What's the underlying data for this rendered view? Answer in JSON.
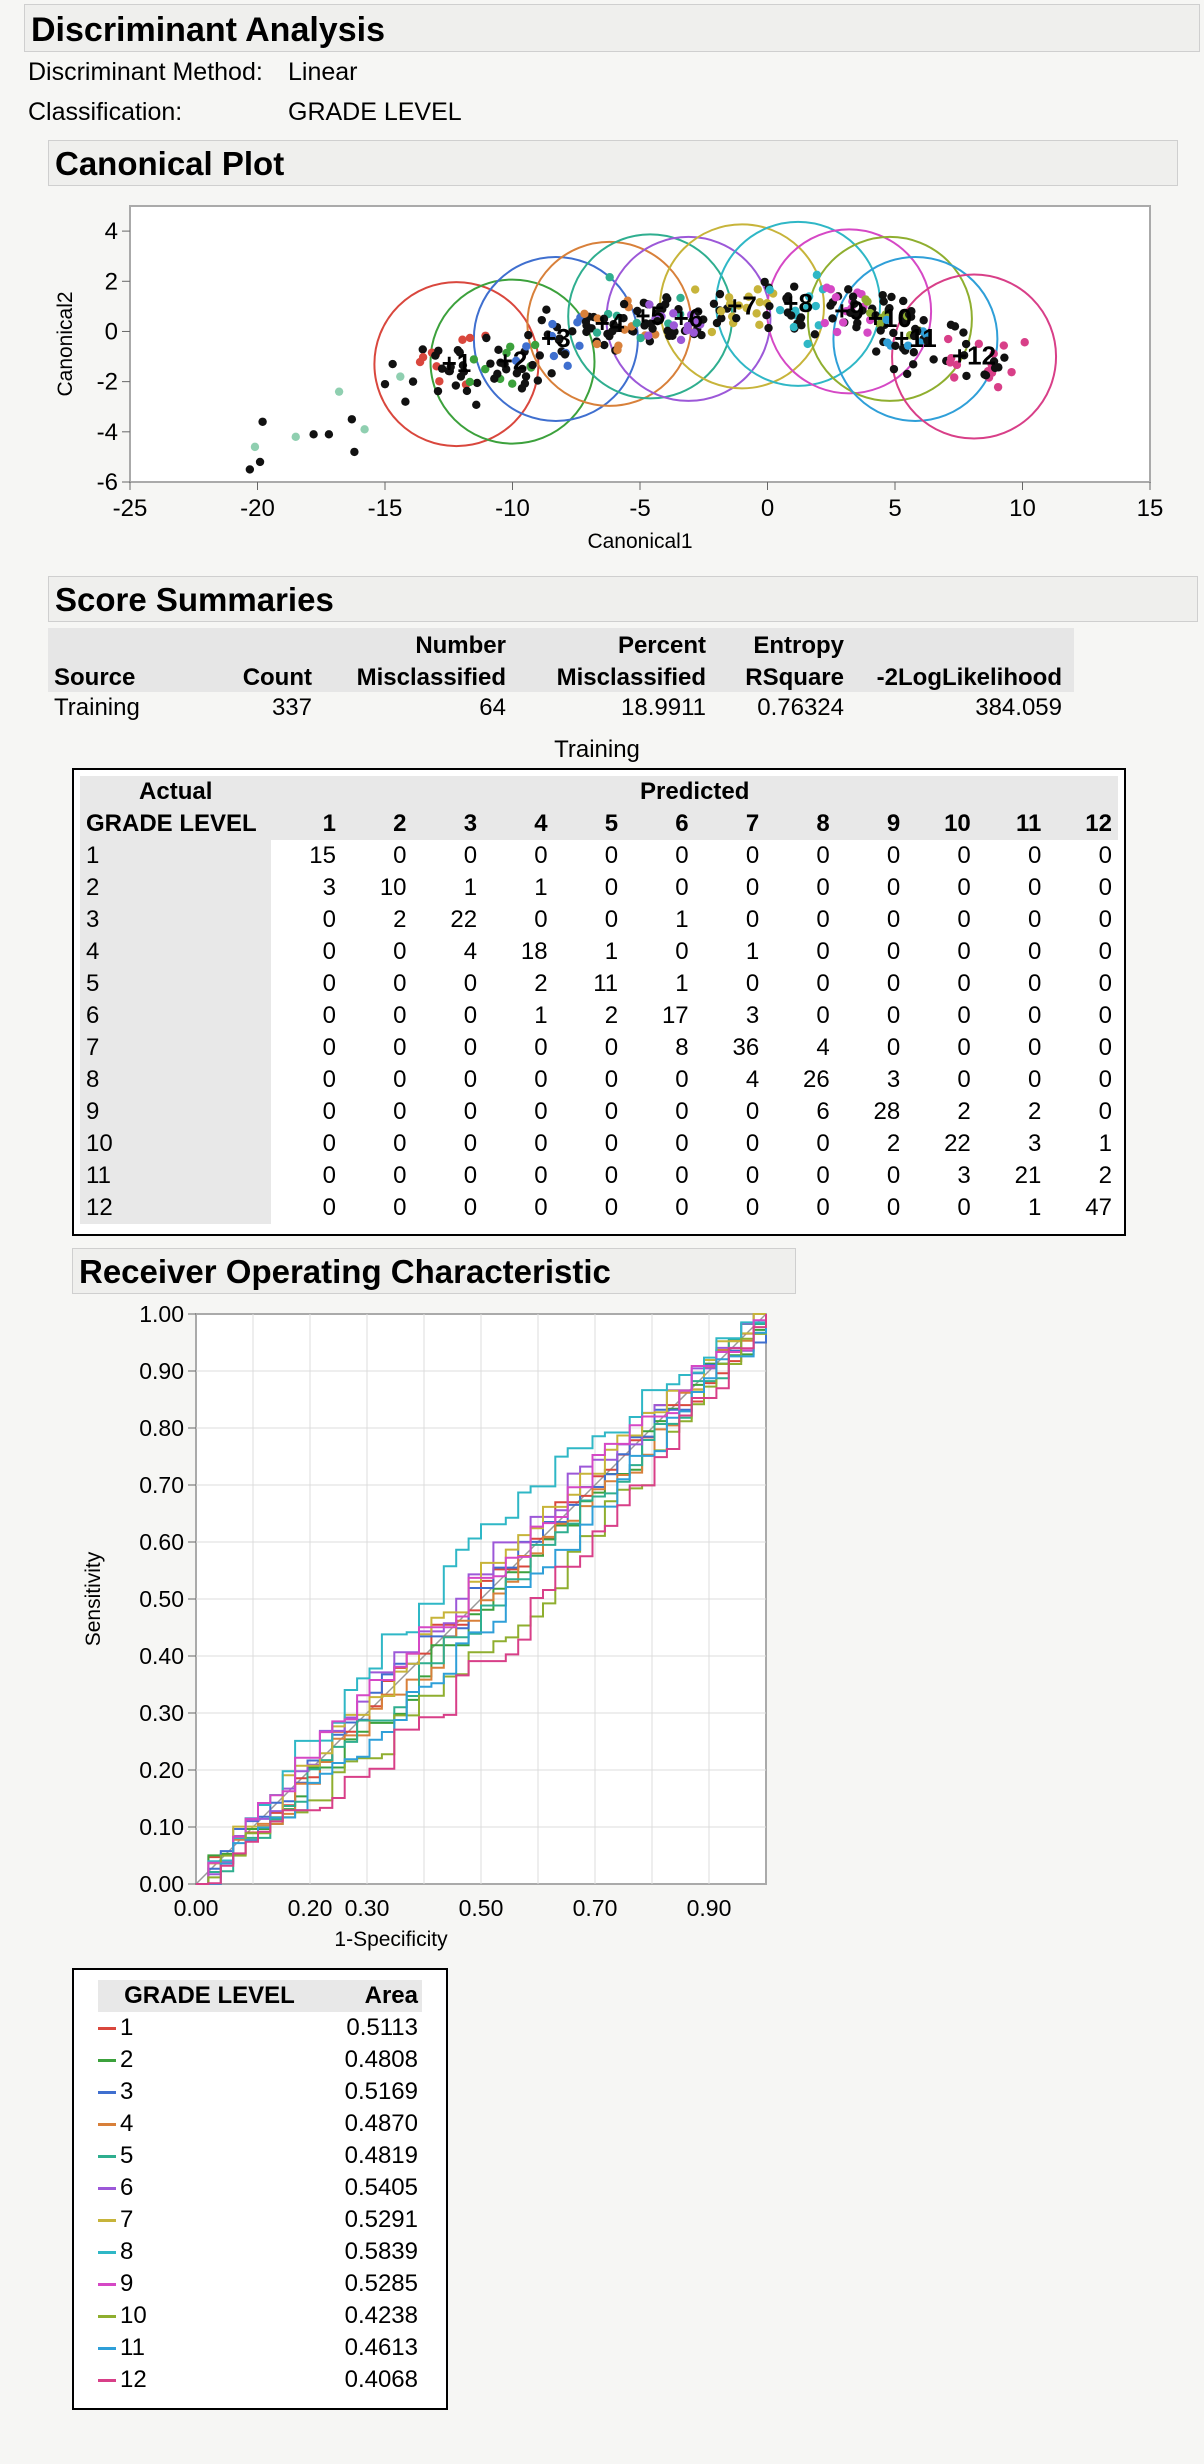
{
  "report_title": "Discriminant Analysis",
  "meta": {
    "method_label": "Discriminant Method:",
    "method_value": "Linear",
    "class_label": "Classification:",
    "class_value": "GRADE LEVEL"
  },
  "canonical": {
    "section_title": "Canonical Plot",
    "xlabel": "Canonical1",
    "ylabel": "Canonical2",
    "xticks": [
      "-25",
      "-20",
      "-15",
      "-10",
      "-5",
      "0",
      "5",
      "10",
      "15"
    ],
    "yticks": [
      "4",
      "2",
      "0",
      "-2",
      "-4",
      "-6"
    ]
  },
  "scores": {
    "section_title": "Score Summaries",
    "headers": [
      {
        "top": "",
        "bottom": "Source"
      },
      {
        "top": "",
        "bottom": "Count"
      },
      {
        "top": "Number",
        "bottom": "Misclassified"
      },
      {
        "top": "Percent",
        "bottom": "Misclassified"
      },
      {
        "top": "Entropy",
        "bottom": "RSquare"
      },
      {
        "top": "",
        "bottom": "-2LogLikelihood"
      }
    ],
    "row": [
      "Training",
      "337",
      "64",
      "18.9911",
      "0.76324",
      "384.059"
    ]
  },
  "confusion": {
    "caption": "Training",
    "actual_label": "Actual",
    "row_header": "GRADE LEVEL",
    "predicted_label": "Predicted",
    "columns": [
      "1",
      "2",
      "3",
      "4",
      "5",
      "6",
      "7",
      "8",
      "9",
      "10",
      "11",
      "12"
    ],
    "rows": [
      {
        "label": "1",
        "values": [
          "15",
          "0",
          "0",
          "0",
          "0",
          "0",
          "0",
          "0",
          "0",
          "0",
          "0",
          "0"
        ]
      },
      {
        "label": "2",
        "values": [
          "3",
          "10",
          "1",
          "1",
          "0",
          "0",
          "0",
          "0",
          "0",
          "0",
          "0",
          "0"
        ]
      },
      {
        "label": "3",
        "values": [
          "0",
          "2",
          "22",
          "0",
          "0",
          "1",
          "0",
          "0",
          "0",
          "0",
          "0",
          "0"
        ]
      },
      {
        "label": "4",
        "values": [
          "0",
          "0",
          "4",
          "18",
          "1",
          "0",
          "1",
          "0",
          "0",
          "0",
          "0",
          "0"
        ]
      },
      {
        "label": "5",
        "values": [
          "0",
          "0",
          "0",
          "2",
          "11",
          "1",
          "0",
          "0",
          "0",
          "0",
          "0",
          "0"
        ]
      },
      {
        "label": "6",
        "values": [
          "0",
          "0",
          "0",
          "1",
          "2",
          "17",
          "3",
          "0",
          "0",
          "0",
          "0",
          "0"
        ]
      },
      {
        "label": "7",
        "values": [
          "0",
          "0",
          "0",
          "0",
          "0",
          "8",
          "36",
          "4",
          "0",
          "0",
          "0",
          "0"
        ]
      },
      {
        "label": "8",
        "values": [
          "0",
          "0",
          "0",
          "0",
          "0",
          "0",
          "4",
          "26",
          "3",
          "0",
          "0",
          "0"
        ]
      },
      {
        "label": "9",
        "values": [
          "0",
          "0",
          "0",
          "0",
          "0",
          "0",
          "0",
          "6",
          "28",
          "2",
          "2",
          "0"
        ]
      },
      {
        "label": "10",
        "values": [
          "0",
          "0",
          "0",
          "0",
          "0",
          "0",
          "0",
          "0",
          "2",
          "22",
          "3",
          "1"
        ]
      },
      {
        "label": "11",
        "values": [
          "0",
          "0",
          "0",
          "0",
          "0",
          "0",
          "0",
          "0",
          "0",
          "3",
          "21",
          "2"
        ]
      },
      {
        "label": "12",
        "values": [
          "0",
          "0",
          "0",
          "0",
          "0",
          "0",
          "0",
          "0",
          "0",
          "0",
          "1",
          "47"
        ]
      }
    ]
  },
  "roc": {
    "section_title": "Receiver Operating Characteristic",
    "xlabel": "1-Specificity",
    "ylabel": "Sensitivity",
    "xticks": [
      "0.00",
      "0.20",
      "0.30",
      "0.50",
      "0.70",
      "0.90"
    ],
    "yticks": [
      "1.00",
      "0.90",
      "0.80",
      "0.70",
      "0.60",
      "0.50",
      "0.40",
      "0.30",
      "0.20",
      "0.10",
      "0.00"
    ]
  },
  "auc": {
    "col1": "GRADE LEVEL",
    "col2": "Area",
    "rows": [
      {
        "label": "1",
        "area": "0.5113",
        "color": "#d9473d"
      },
      {
        "label": "2",
        "area": "0.4808",
        "color": "#3ca13c"
      },
      {
        "label": "3",
        "area": "0.5169",
        "color": "#3f6fcf"
      },
      {
        "label": "4",
        "area": "0.4870",
        "color": "#d8803a"
      },
      {
        "label": "5",
        "area": "0.4819",
        "color": "#2fae8f"
      },
      {
        "label": "6",
        "area": "0.5405",
        "color": "#9c58d8"
      },
      {
        "label": "7",
        "area": "0.5291",
        "color": "#c7b43a"
      },
      {
        "label": "8",
        "area": "0.5839",
        "color": "#2fb7c6"
      },
      {
        "label": "9",
        "area": "0.5285",
        "color": "#d548c5"
      },
      {
        "label": "10",
        "area": "0.4238",
        "color": "#8fae2f"
      },
      {
        "label": "11",
        "area": "0.4613",
        "color": "#2f9fd8"
      },
      {
        "label": "12",
        "area": "0.4068",
        "color": "#d83f88"
      }
    ]
  },
  "chart_data": [
    {
      "type": "scatter",
      "title": "Canonical Plot",
      "xlabel": "Canonical1",
      "ylabel": "Canonical2",
      "xlim": [
        -25,
        15
      ],
      "ylim": [
        -6,
        5
      ],
      "class_means": [
        {
          "label": "1",
          "x": -12.2,
          "y": -1.3,
          "color": "#d9473d"
        },
        {
          "label": "2",
          "x": -10.0,
          "y": -1.2,
          "color": "#3ca13c"
        },
        {
          "label": "3",
          "x": -8.3,
          "y": -0.3,
          "color": "#3f6fcf"
        },
        {
          "label": "4",
          "x": -6.2,
          "y": 0.3,
          "color": "#d8803a"
        },
        {
          "label": "5",
          "x": -4.6,
          "y": 0.6,
          "color": "#2fae8f"
        },
        {
          "label": "6",
          "x": -3.1,
          "y": 0.5,
          "color": "#9c58d8"
        },
        {
          "label": "7",
          "x": -1.0,
          "y": 1.0,
          "color": "#c7b43a"
        },
        {
          "label": "8",
          "x": 1.2,
          "y": 1.1,
          "color": "#2fb7c6"
        },
        {
          "label": "9",
          "x": 3.2,
          "y": 0.8,
          "color": "#d548c5"
        },
        {
          "label": "10",
          "x": 4.8,
          "y": 0.5,
          "color": "#8fae2f"
        },
        {
          "label": "11",
          "x": 5.8,
          "y": -0.3,
          "color": "#2f9fd8"
        },
        {
          "label": "12",
          "x": 8.1,
          "y": -1.0,
          "color": "#d83f88"
        }
      ]
    },
    {
      "type": "line",
      "title": "Receiver Operating Characteristic",
      "xlabel": "1-Specificity",
      "ylabel": "Sensitivity",
      "xlim": [
        0,
        1
      ],
      "ylim": [
        0,
        1
      ],
      "series": [
        {
          "name": "1",
          "area": 0.5113
        },
        {
          "name": "2",
          "area": 0.4808
        },
        {
          "name": "3",
          "area": 0.5169
        },
        {
          "name": "4",
          "area": 0.487
        },
        {
          "name": "5",
          "area": 0.4819
        },
        {
          "name": "6",
          "area": 0.5405
        },
        {
          "name": "7",
          "area": 0.5291
        },
        {
          "name": "8",
          "area": 0.5839
        },
        {
          "name": "9",
          "area": 0.5285
        },
        {
          "name": "10",
          "area": 0.4238
        },
        {
          "name": "11",
          "area": 0.4613
        },
        {
          "name": "12",
          "area": 0.4068
        }
      ]
    }
  ]
}
